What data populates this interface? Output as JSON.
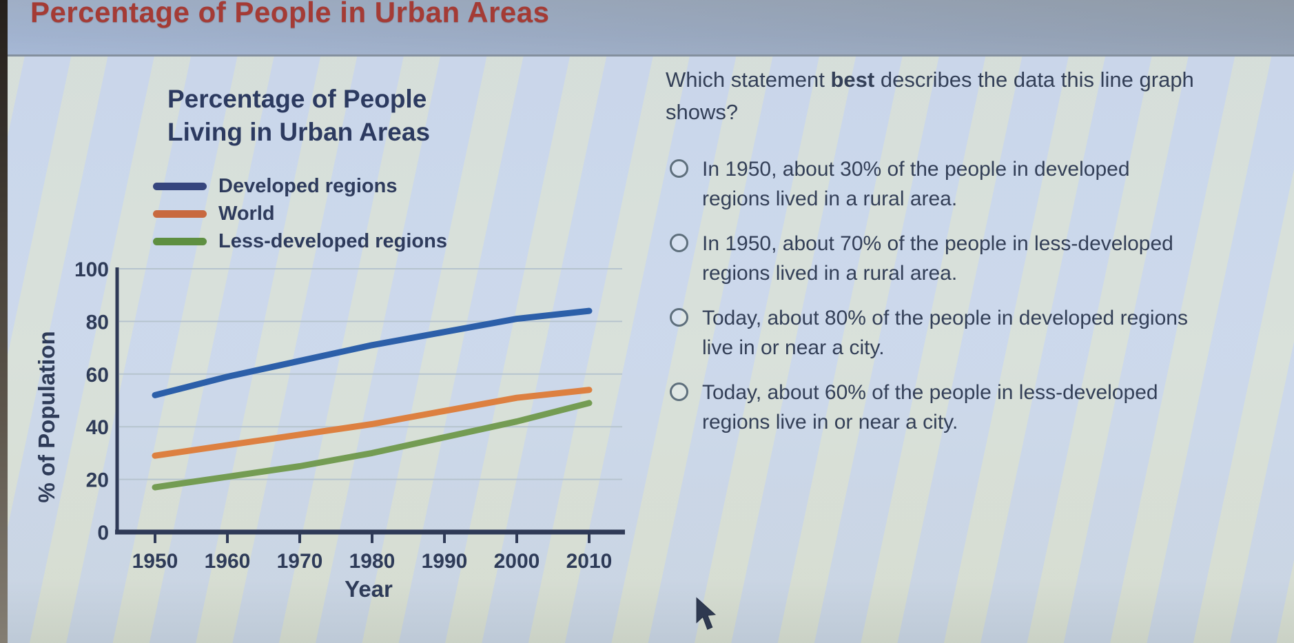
{
  "header": {
    "title": "Percentage of People in Urban Areas"
  },
  "chart": {
    "title_lines": [
      "Percentage of People",
      "Living in Urban Areas"
    ],
    "legend": [
      {
        "label": "Developed regions",
        "color": "#35457e"
      },
      {
        "label": "World",
        "color": "#c8693f"
      },
      {
        "label": "Less-developed regions",
        "color": "#5e8f41"
      }
    ]
  },
  "chart_data": {
    "type": "line",
    "title": "Percentage of People Living in Urban Areas",
    "xlabel": "Year",
    "ylabel": "% of Population",
    "x": [
      1950,
      1960,
      1970,
      1980,
      1990,
      2000,
      2010
    ],
    "series": [
      {
        "name": "Developed regions",
        "color": "#2c5fa9",
        "values": [
          52,
          59,
          65,
          71,
          76,
          81,
          84
        ]
      },
      {
        "name": "World",
        "color": "#dd8040",
        "values": [
          29,
          33,
          37,
          41,
          46,
          51,
          54
        ]
      },
      {
        "name": "Less-developed regions",
        "color": "#749c53",
        "values": [
          17,
          21,
          25,
          30,
          36,
          42,
          49
        ]
      }
    ],
    "ylim": [
      0,
      100
    ],
    "yticks": [
      0,
      20,
      40,
      60,
      80,
      100
    ],
    "xticks": [
      1950,
      1960,
      1970,
      1980,
      1990,
      2000,
      2010
    ],
    "grid": true,
    "legend_position": "top-left"
  },
  "question": {
    "prefix": "Which statement ",
    "bold": "best",
    "suffix": " describes the data this line graph shows?",
    "options": [
      {
        "label": "In 1950, about 30% of the people in developed regions lived in a rural area.",
        "selected": false
      },
      {
        "label": "In 1950, about 70% of the people in less-developed regions lived in a rural area.",
        "selected": false
      },
      {
        "label": "Today, about 80% of the people in developed regions live in or near a city.",
        "selected": false
      },
      {
        "label": "Today, about 60% of the people in less-developed regions live in or near a city.",
        "selected": false
      }
    ]
  },
  "cursor": {
    "type": "arrow-pointer"
  }
}
